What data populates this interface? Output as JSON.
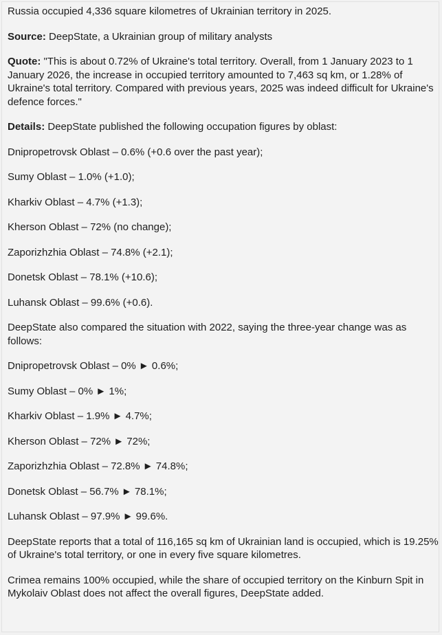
{
  "lead": "Russia occupied 4,336 square kilometres of Ukrainian territory in 2025.",
  "source": {
    "label": "Source:",
    "text": " DeepState, a Ukrainian group of military analysts"
  },
  "quote": {
    "label": "Quote:",
    "text": " \"This is about 0.72% of Ukraine's total territory. Overall, from 1 January 2023 to 1 January 2026, the increase in occupied territory amounted to 7,463 sq km, or 1.28% of Ukraine's total territory. Compared with previous years, 2025 was indeed difficult for Ukraine's defence forces.\""
  },
  "details": {
    "label": "Details:",
    "text": " DeepState published the following occupation figures by oblast:"
  },
  "oblast_2025": [
    "Dnipropetrovsk Oblast – 0.6% (+0.6 over the past year);",
    "Sumy Oblast – 1.0% (+1.0);",
    "Kharkiv Oblast – 4.7% (+1.3);",
    "Kherson Oblast – 72% (no change);",
    "Zaporizhzhia Oblast – 74.8% (+2.1);",
    "Donetsk Oblast – 78.1% (+10.6);",
    "Luhansk Oblast – 99.6% (+0.6)."
  ],
  "comparison_intro": "DeepState also compared the situation with 2022, saying the three-year change was as follows:",
  "oblast_change": [
    "Dnipropetrovsk Oblast – 0% ► 0.6%;",
    "Sumy Oblast – 0% ► 1%;",
    "Kharkiv Oblast – 1.9% ► 4.7%;",
    "Kherson Oblast – 72% ► 72%;",
    "Zaporizhzhia Oblast – 72.8% ► 74.8%;",
    "Donetsk Oblast – 56.7% ► 78.1%;",
    "Luhansk Oblast – 97.9% ► 99.6%."
  ],
  "total_report": "DeepState reports that a total of 116,165 sq km of Ukrainian land is occupied, which is 19.25% of Ukraine's total territory, or one in every five square kilometres.",
  "crimea_note": "Crimea remains 100% occupied, while the share of occupied territory on the Kinburn Spit in Mykolaiv Oblast does not affect the overall figures, DeepState added."
}
